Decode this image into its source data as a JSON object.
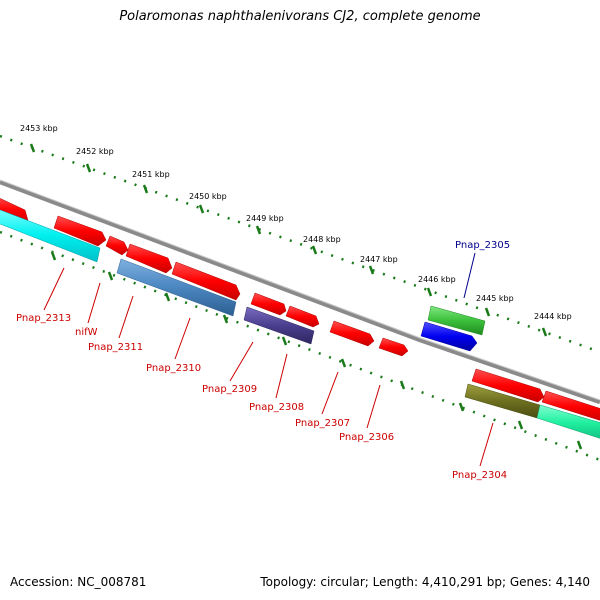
{
  "title": "Polaromonas naphthalenivorans CJ2, complete genome",
  "accession": "Accession: NC_008781",
  "summary": "Topology: circular; Length: 4,410,291 bp; Genes: 4,140",
  "colors": {
    "backbone": "#8a8a8a",
    "dots": "#1a7a1a",
    "red_gene": "#ff1010",
    "label_red": "#cc0000",
    "label_blue": "#00008b"
  },
  "ticks": [
    "2453 kbp",
    "2452 kbp",
    "2451 kbp",
    "2450 kbp",
    "2449 kbp",
    "2448 kbp",
    "2447 kbp",
    "2446 kbp",
    "2445 kbp",
    "2444 kbp"
  ],
  "genes": [
    {
      "name": "Pnap_2313",
      "color": "red_gene"
    },
    {
      "name": "nifW",
      "color": "red_gene"
    },
    {
      "name": "Pnap_2311",
      "color": "red_gene"
    },
    {
      "name": "Pnap_2310",
      "color": "steelblue"
    },
    {
      "name": "Pnap_2309",
      "color": "red_gene"
    },
    {
      "name": "Pnap_2308",
      "color": "slateblue"
    },
    {
      "name": "Pnap_2307",
      "color": "red_gene"
    },
    {
      "name": "Pnap_2306",
      "color": "red_gene"
    },
    {
      "name": "Pnap_2305",
      "color": "blue"
    },
    {
      "name": "Pnap_2304",
      "color": "olive"
    }
  ]
}
